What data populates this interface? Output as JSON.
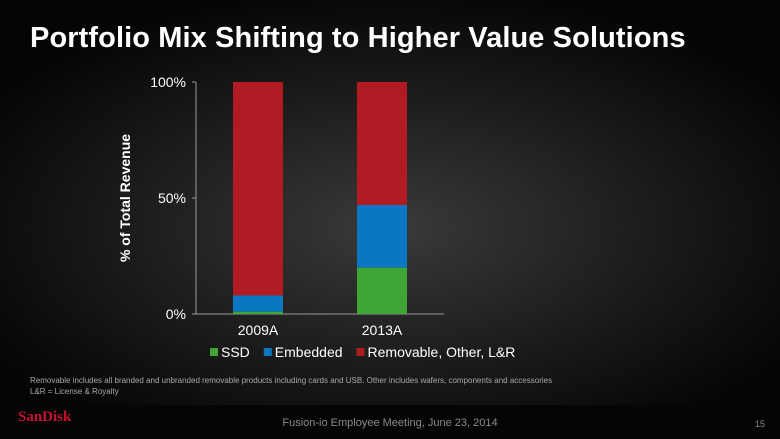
{
  "title": "Portfolio Mix Shifting to Higher Value Solutions",
  "chart_data": {
    "type": "bar",
    "stacked": true,
    "categories": [
      "2009A",
      "2013A"
    ],
    "series": [
      {
        "name": "SSD",
        "color": "#3fa535",
        "values": [
          1,
          20
        ]
      },
      {
        "name": "Embedded",
        "color": "#0a77c2",
        "values": [
          7,
          27
        ]
      },
      {
        "name": "Removable, Other, L&R",
        "color": "#b31b24",
        "values": [
          92,
          53
        ]
      }
    ],
    "ylabel": "% of Total Revenue",
    "yticks": [
      "0%",
      "50%",
      "100%"
    ],
    "ylim": [
      0,
      100
    ],
    "legend_position": "bottom"
  },
  "footnotes": {
    "line1": "Removable includes all branded and unbranded removable products including cards and USB. Other includes wafers, components and accessories",
    "line2": "L&R = License & Royalty"
  },
  "footer": {
    "logo": "SanDisk",
    "text": "Fusion-io Employee Meeting, June 23, 2014",
    "page": "15"
  }
}
